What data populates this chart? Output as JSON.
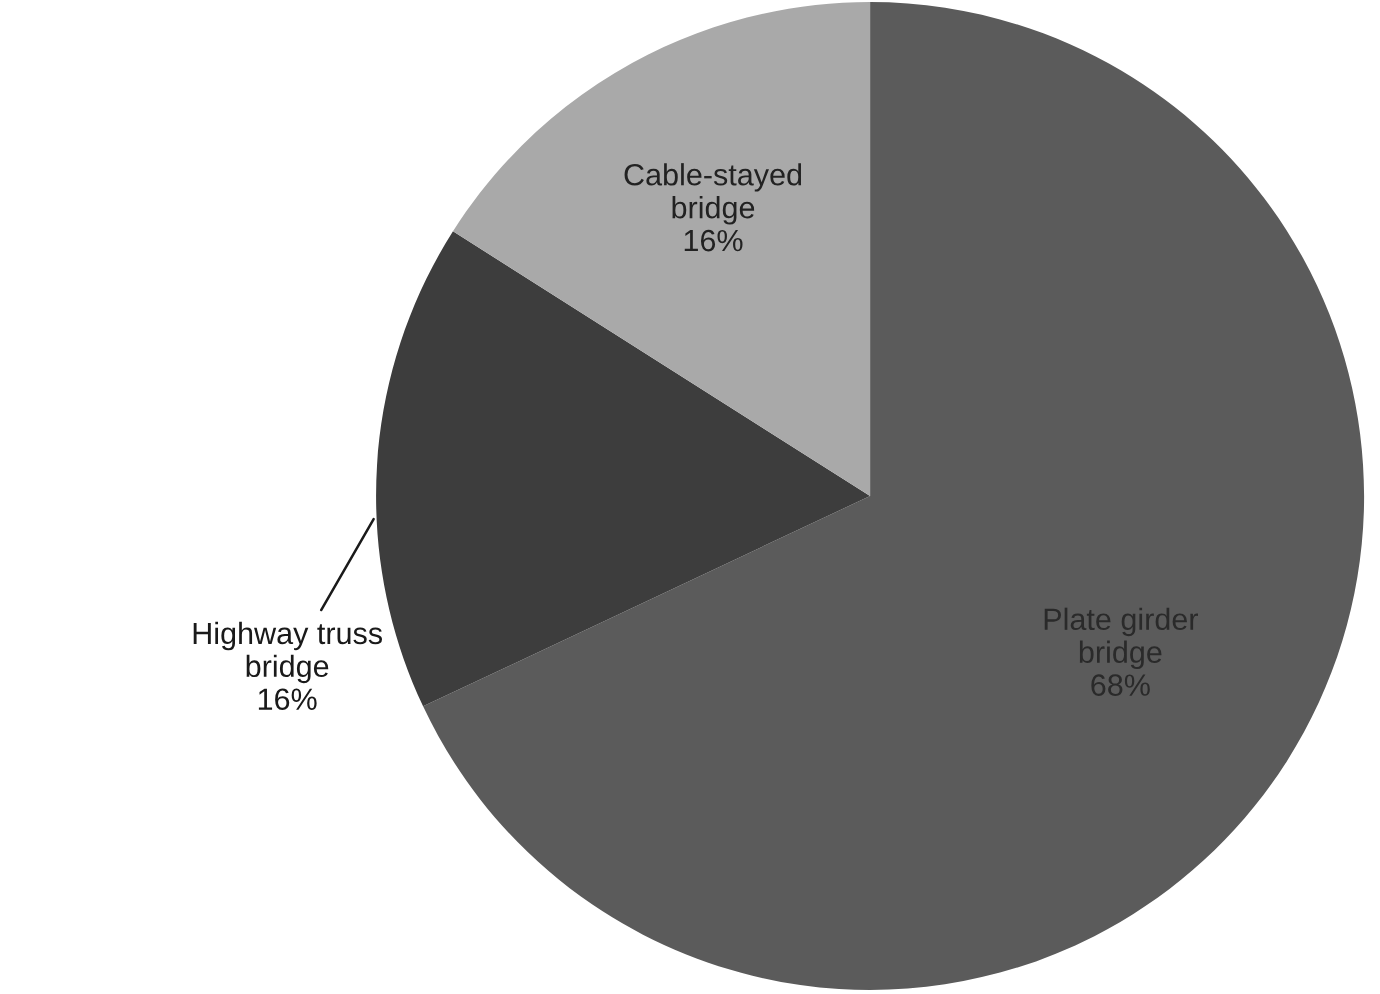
{
  "chart_data": {
    "type": "pie",
    "categories": [
      "Plate girder\nbridge",
      "Highway truss\nbridge",
      "Cable-stayed\nbridge"
    ],
    "values": [
      68,
      16,
      16
    ],
    "value_labels": [
      "68%",
      "16%",
      "16%"
    ],
    "colors": [
      "#5b5b5b",
      "#3d3d3d",
      "#a9a9a9"
    ],
    "legend": false
  }
}
